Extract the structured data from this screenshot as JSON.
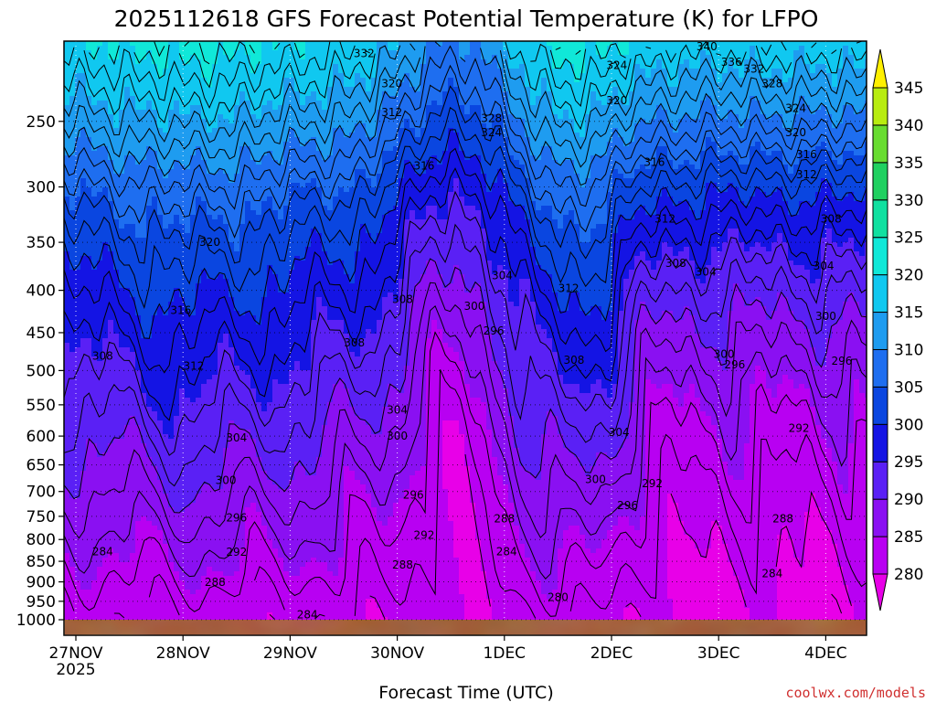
{
  "chart_data": {
    "type": "heatmap",
    "title": "2025112618 GFS Forecast Potential Temperature (K) for LFPO",
    "xlabel": "Forecast Time (UTC)",
    "ylabel": "",
    "credit": "coolwx.com/models",
    "x_start": "2025-11-27T00:00Z",
    "x_end": "2025-12-04T06:00Z",
    "x_ticks": [
      {
        "label": "27NOV",
        "sub": "2025",
        "day": 0
      },
      {
        "label": "28NOV",
        "sub": "",
        "day": 1
      },
      {
        "label": "29NOV",
        "sub": "",
        "day": 2
      },
      {
        "label": "30NOV",
        "sub": "",
        "day": 3
      },
      {
        "label": "1DEC",
        "sub": "",
        "day": 4
      },
      {
        "label": "2DEC",
        "sub": "",
        "day": 5
      },
      {
        "label": "3DEC",
        "sub": "",
        "day": 6
      },
      {
        "label": "4DEC",
        "sub": "",
        "day": 7
      }
    ],
    "y_scale": "log-pressure",
    "y_range_hPa": [
      1000,
      200
    ],
    "y_ticks": [
      "250",
      "300",
      "350",
      "400",
      "450",
      "500",
      "550",
      "600",
      "650",
      "700",
      "750",
      "800",
      "850",
      "900",
      "950",
      "1000"
    ],
    "grid": true,
    "colorbar": {
      "levels": [
        275,
        280,
        285,
        290,
        295,
        300,
        305,
        310,
        315,
        320,
        325,
        330,
        335,
        340,
        345,
        350
      ],
      "labels": [
        "280",
        "285",
        "290",
        "295",
        "300",
        "305",
        "310",
        "315",
        "320",
        "325",
        "330",
        "335",
        "340",
        "345"
      ],
      "colors": [
        "#e800e8",
        "#b800f2",
        "#8a10f2",
        "#5a20f5",
        "#1414e4",
        "#0a46e0",
        "#1e6ef0",
        "#1e9cf0",
        "#10c8f0",
        "#10e8d8",
        "#10e0a0",
        "#20d060",
        "#68dc30",
        "#b8ec10",
        "#fff000"
      ]
    },
    "ground_color": "#a0522d",
    "ground_top_hPa": 1000,
    "series": [
      {
        "name": "",
        "theta_1000hPa_K": [
          280,
          281,
          282,
          283,
          283,
          283,
          282,
          281,
          280,
          281,
          283,
          282,
          281,
          281,
          282
        ]
      },
      {
        "name": "",
        "theta_850hPa_K": [
          285,
          287,
          287,
          287,
          287,
          288,
          288,
          287,
          285,
          285,
          287,
          286,
          286,
          286,
          287
        ]
      },
      {
        "name": "",
        "theta_700hPa_K": [
          292,
          295,
          296,
          296,
          295,
          292,
          288,
          287,
          288,
          292,
          293,
          290,
          288,
          288,
          290
        ]
      },
      {
        "name": "",
        "theta_500hPa_K": [
          304,
          310,
          312,
          309,
          306,
          300,
          295,
          302,
          307,
          304,
          300,
          296,
          294,
          296,
          300
        ]
      },
      {
        "name": "",
        "theta_300hPa_K": [
          314,
          318,
          320,
          315,
          309,
          308,
          306,
          312,
          318,
          317,
          307,
          304,
          303,
          305,
          307
        ]
      }
    ],
    "annotations": [
      {
        "text": "332",
        "day": 2.69,
        "hPa": 207
      },
      {
        "text": "320",
        "day": 2.95,
        "hPa": 225
      },
      {
        "text": "312",
        "day": 2.95,
        "hPa": 244
      },
      {
        "text": "324",
        "day": 5.05,
        "hPa": 214
      },
      {
        "text": "320",
        "day": 5.05,
        "hPa": 236
      },
      {
        "text": "328",
        "day": 3.88,
        "hPa": 248
      },
      {
        "text": "324",
        "day": 3.88,
        "hPa": 258
      },
      {
        "text": "316",
        "day": 3.25,
        "hPa": 283
      },
      {
        "text": "316",
        "day": 5.4,
        "hPa": 280
      },
      {
        "text": "340",
        "day": 5.89,
        "hPa": 203
      },
      {
        "text": "336",
        "day": 6.12,
        "hPa": 212
      },
      {
        "text": "332",
        "day": 6.33,
        "hPa": 216
      },
      {
        "text": "328",
        "day": 6.5,
        "hPa": 225
      },
      {
        "text": "324",
        "day": 6.72,
        "hPa": 241
      },
      {
        "text": "320",
        "day": 6.72,
        "hPa": 258
      },
      {
        "text": "316",
        "day": 6.82,
        "hPa": 274
      },
      {
        "text": "312",
        "day": 6.82,
        "hPa": 290
      },
      {
        "text": "308",
        "day": 7.05,
        "hPa": 328
      },
      {
        "text": "312",
        "day": 5.5,
        "hPa": 328
      },
      {
        "text": "308",
        "day": 5.6,
        "hPa": 371
      },
      {
        "text": "304",
        "day": 5.88,
        "hPa": 380
      },
      {
        "text": "304",
        "day": 6.98,
        "hPa": 374
      },
      {
        "text": "320",
        "day": 1.25,
        "hPa": 350
      },
      {
        "text": "316",
        "day": 0.98,
        "hPa": 423
      },
      {
        "text": "308",
        "day": 0.25,
        "hPa": 480
      },
      {
        "text": "312",
        "day": 1.1,
        "hPa": 494
      },
      {
        "text": "308",
        "day": 2.6,
        "hPa": 463
      },
      {
        "text": "308",
        "day": 3.05,
        "hPa": 410
      },
      {
        "text": "304",
        "day": 3.98,
        "hPa": 384
      },
      {
        "text": "300",
        "day": 3.72,
        "hPa": 418
      },
      {
        "text": "296",
        "day": 3.9,
        "hPa": 448
      },
      {
        "text": "312",
        "day": 4.6,
        "hPa": 398
      },
      {
        "text": "308",
        "day": 4.65,
        "hPa": 486
      },
      {
        "text": "300",
        "day": 6.05,
        "hPa": 478
      },
      {
        "text": "296",
        "day": 6.15,
        "hPa": 492
      },
      {
        "text": "300",
        "day": 7.0,
        "hPa": 430
      },
      {
        "text": "296",
        "day": 7.15,
        "hPa": 487
      },
      {
        "text": "304",
        "day": 1.5,
        "hPa": 603
      },
      {
        "text": "300",
        "day": 1.4,
        "hPa": 679
      },
      {
        "text": "296",
        "day": 1.5,
        "hPa": 753
      },
      {
        "text": "292",
        "day": 1.5,
        "hPa": 828
      },
      {
        "text": "288",
        "day": 1.3,
        "hPa": 901
      },
      {
        "text": "284",
        "day": 0.25,
        "hPa": 827
      },
      {
        "text": "284",
        "day": 2.16,
        "hPa": 986
      },
      {
        "text": "304",
        "day": 3.0,
        "hPa": 558
      },
      {
        "text": "300",
        "day": 3.0,
        "hPa": 600
      },
      {
        "text": "296",
        "day": 3.15,
        "hPa": 707
      },
      {
        "text": "292",
        "day": 3.25,
        "hPa": 790
      },
      {
        "text": "288",
        "day": 3.05,
        "hPa": 858
      },
      {
        "text": "288",
        "day": 4.0,
        "hPa": 755
      },
      {
        "text": "284",
        "day": 4.02,
        "hPa": 827
      },
      {
        "text": "280",
        "day": 4.5,
        "hPa": 940
      },
      {
        "text": "304",
        "day": 5.07,
        "hPa": 594
      },
      {
        "text": "300",
        "day": 4.85,
        "hPa": 677
      },
      {
        "text": "296",
        "day": 5.15,
        "hPa": 728
      },
      {
        "text": "292",
        "day": 5.38,
        "hPa": 685
      },
      {
        "text": "292",
        "day": 6.75,
        "hPa": 587
      },
      {
        "text": "288",
        "day": 6.6,
        "hPa": 755
      },
      {
        "text": "284",
        "day": 6.5,
        "hPa": 880
      }
    ]
  }
}
